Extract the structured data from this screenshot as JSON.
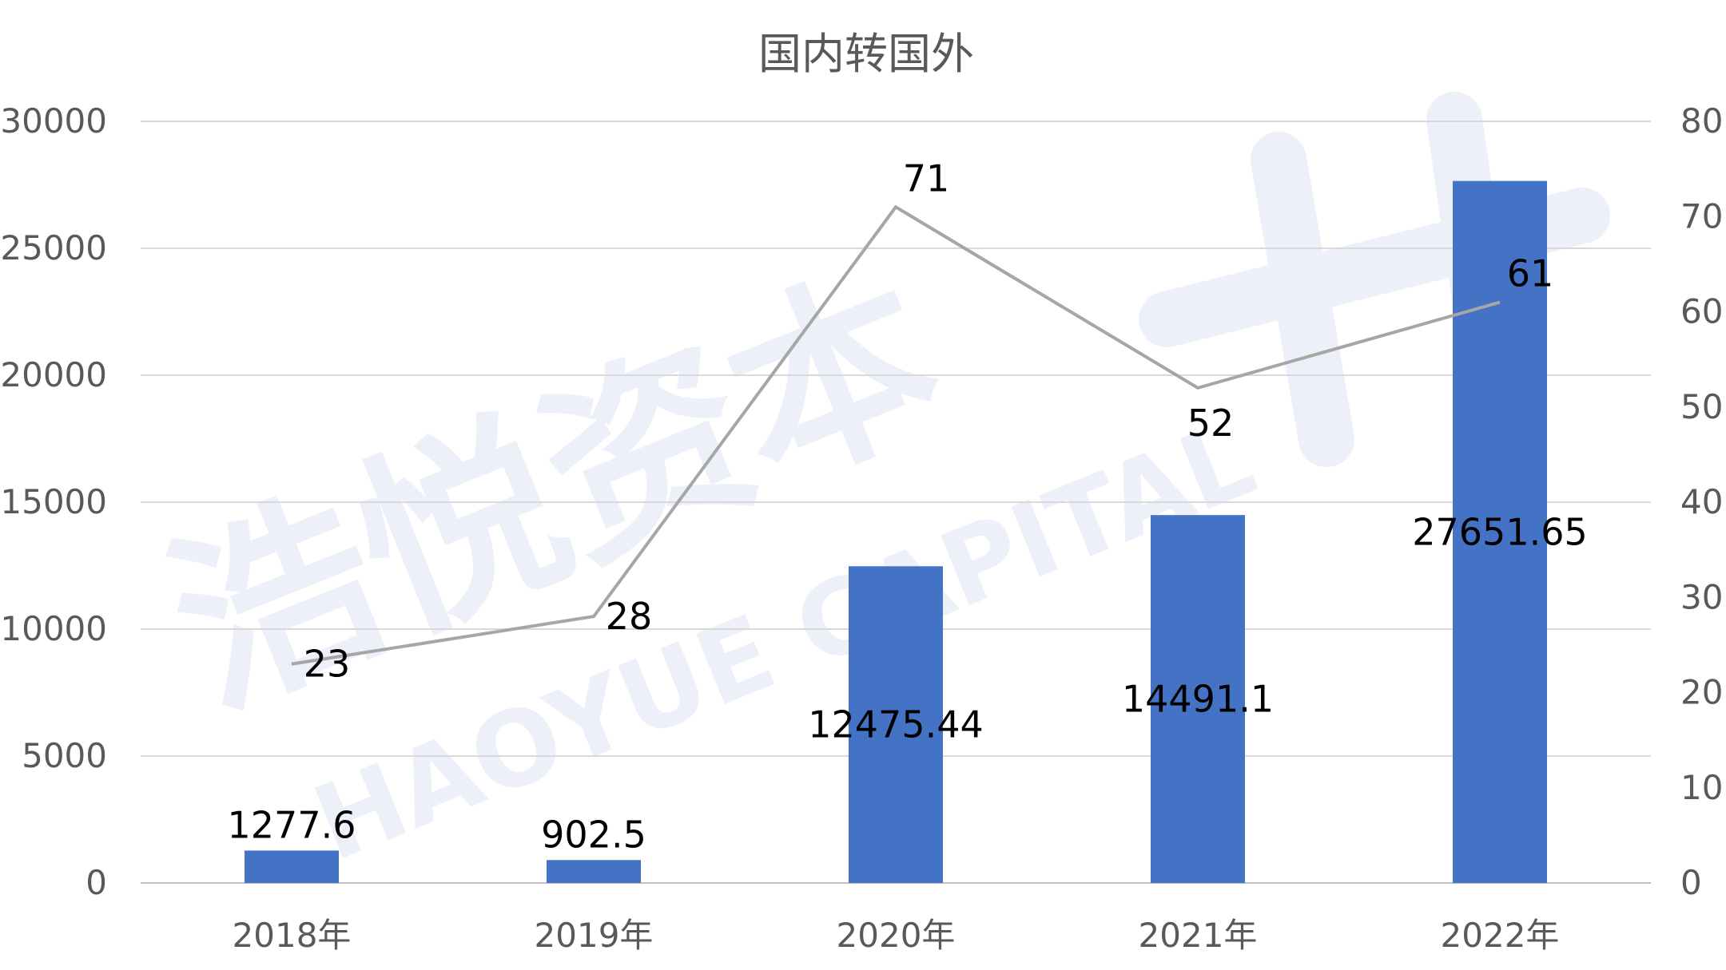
{
  "watermark": {
    "cn": "浩悦资本",
    "en": "HAOYUE CAPITAL"
  },
  "chart_data": {
    "type": "bar",
    "title": "国内转国外",
    "categories": [
      "2018年",
      "2019年",
      "2020年",
      "2021年",
      "2022年"
    ],
    "series": [
      {
        "type": "bar",
        "axis": "left",
        "color": "#4472c4",
        "values": [
          1277.6,
          902.5,
          12475.44,
          14491.1,
          27651.65
        ],
        "labels": [
          "1277.6",
          "902.5",
          "12475.44",
          "14491.1",
          "27651.65"
        ]
      },
      {
        "type": "line",
        "axis": "right",
        "color": "#a6a6a6",
        "values": [
          23,
          28,
          71,
          52,
          61
        ],
        "labels": [
          "23",
          "28",
          "71",
          "52",
          "61"
        ]
      }
    ],
    "y_left": {
      "min": 0,
      "max": 30000,
      "ticks": [
        "0",
        "5000",
        "10000",
        "15000",
        "20000",
        "25000",
        "30000"
      ]
    },
    "y_right": {
      "min": 0,
      "max": 80,
      "ticks": [
        "0",
        "10",
        "20",
        "30",
        "40",
        "50",
        "60",
        "70",
        "80"
      ]
    },
    "grid": true,
    "legend": "none"
  }
}
